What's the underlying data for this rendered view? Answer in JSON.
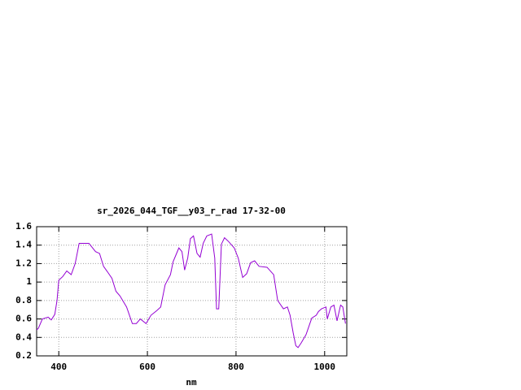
{
  "chart_data": {
    "type": "line",
    "title": "sr_2026_044_TGF__y03_r_rad 17-32-00",
    "x_label": "nm",
    "xlim": [
      350,
      1050
    ],
    "xticks": [
      400,
      600,
      800,
      1000
    ],
    "ylim": [
      0.2,
      1.6
    ],
    "yticks": [
      0.2,
      0.4,
      0.6,
      0.8,
      1,
      1.2,
      1.4,
      1.6
    ],
    "grid": true,
    "series": [
      {
        "color": "#9400d3",
        "x": [
          350,
          354,
          363,
          376,
          383,
          391,
          396,
          400,
          409,
          418,
          428,
          437,
          446,
          468,
          483,
          492,
          501,
          510,
          520,
          529,
          538,
          553,
          566,
          575,
          584,
          597,
          608,
          621,
          630,
          640,
          652,
          658,
          671,
          678,
          684,
          691,
          697,
          704,
          712,
          719,
          726,
          734,
          745,
          752,
          756,
          761,
          767,
          774,
          783,
          796,
          805,
          815,
          824,
          833,
          842,
          852,
          870,
          885,
          894,
          907,
          916,
          922,
          929,
          935,
          940,
          947,
          958,
          971,
          981,
          986,
          993,
          1003,
          1006,
          1014,
          1021,
          1028,
          1036,
          1041,
          1047
        ],
        "values": [
          0.48,
          0.5,
          0.6,
          0.62,
          0.59,
          0.65,
          0.8,
          1.02,
          1.06,
          1.12,
          1.08,
          1.2,
          1.42,
          1.42,
          1.33,
          1.31,
          1.17,
          1.11,
          1.04,
          0.9,
          0.85,
          0.73,
          0.55,
          0.55,
          0.6,
          0.55,
          0.64,
          0.69,
          0.73,
          0.97,
          1.08,
          1.22,
          1.37,
          1.33,
          1.13,
          1.26,
          1.47,
          1.5,
          1.31,
          1.27,
          1.42,
          1.5,
          1.52,
          1.26,
          0.71,
          0.71,
          1.41,
          1.48,
          1.44,
          1.37,
          1.26,
          1.05,
          1.09,
          1.21,
          1.23,
          1.17,
          1.16,
          1.08,
          0.8,
          0.71,
          0.73,
          0.64,
          0.45,
          0.31,
          0.29,
          0.34,
          0.43,
          0.61,
          0.64,
          0.68,
          0.71,
          0.73,
          0.6,
          0.73,
          0.75,
          0.58,
          0.75,
          0.73,
          0.55
        ]
      }
    ]
  }
}
